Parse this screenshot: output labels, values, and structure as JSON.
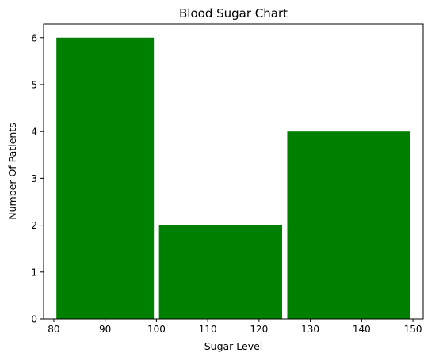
{
  "chart_data": {
    "type": "bar",
    "title": "Blood Sugar Chart",
    "xlabel": "Sugar Level",
    "ylabel": "Number Of Patients",
    "bars": [
      {
        "x_start": 80.5,
        "x_end": 99.5,
        "value": 6
      },
      {
        "x_start": 100.5,
        "x_end": 124.5,
        "value": 2
      },
      {
        "x_start": 125.5,
        "x_end": 149.5,
        "value": 4
      }
    ],
    "xlim": [
      78,
      152
    ],
    "ylim": [
      0,
      6.3
    ],
    "xticks": [
      80,
      90,
      100,
      110,
      120,
      130,
      140,
      150
    ],
    "yticks": [
      0,
      1,
      2,
      3,
      4,
      5,
      6
    ],
    "bar_color": "#008000",
    "grid": false,
    "legend": "none"
  }
}
